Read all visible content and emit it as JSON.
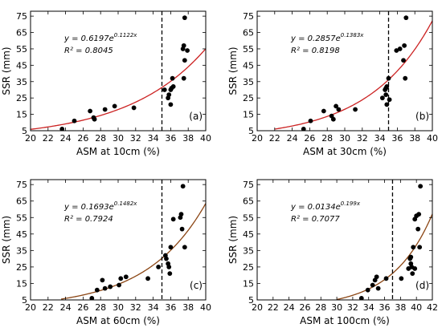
{
  "chart_data": [
    {
      "type": "scatter",
      "panel_label": "(a)",
      "xlabel": "ASM at 10cm (%)",
      "ylabel": "SSR (mm)",
      "xlim": [
        20,
        40
      ],
      "ylim": [
        5,
        78
      ],
      "xticks": [
        20,
        22,
        24,
        26,
        28,
        30,
        32,
        34,
        36,
        38,
        40
      ],
      "yticks": [
        5,
        15,
        25,
        35,
        45,
        55,
        65,
        75
      ],
      "equation": "y = 0.6197e^{0.1122x}",
      "equation_main": "y = 0.6197e",
      "equation_exp": "0.1122x",
      "r2_text": "R² = 0.8045",
      "fit": {
        "a": 0.6197,
        "b": 0.1122,
        "x_range": [
          20,
          40
        ],
        "color": "#cc2222"
      },
      "vline": 35,
      "points": [
        [
          23.6,
          6
        ],
        [
          25.0,
          11
        ],
        [
          26.8,
          17
        ],
        [
          27.2,
          13
        ],
        [
          27.3,
          12
        ],
        [
          28.5,
          18
        ],
        [
          29.6,
          20
        ],
        [
          31.8,
          19
        ],
        [
          35.3,
          30
        ],
        [
          35.7,
          25
        ],
        [
          35.8,
          27
        ],
        [
          36.0,
          30
        ],
        [
          36.0,
          21
        ],
        [
          36.1,
          31
        ],
        [
          36.2,
          37
        ],
        [
          36.3,
          32
        ],
        [
          37.4,
          55
        ],
        [
          37.5,
          57
        ],
        [
          37.5,
          37
        ],
        [
          37.6,
          48
        ],
        [
          37.6,
          74
        ],
        [
          37.9,
          54
        ]
      ]
    },
    {
      "type": "scatter",
      "panel_label": "(b)",
      "xlabel": "ASM at 30cm (%)",
      "ylabel": "SSR (mm)",
      "xlim": [
        20,
        40
      ],
      "ylim": [
        5,
        78
      ],
      "xticks": [
        20,
        22,
        24,
        26,
        28,
        30,
        32,
        34,
        36,
        38,
        40
      ],
      "yticks": [
        5,
        15,
        25,
        35,
        45,
        55,
        65,
        75
      ],
      "equation": "y = 0.2857e^{0.1383x}",
      "equation_main": "y = 0.2857e",
      "equation_exp": "0.1383x",
      "r2_text": "R² = 0.8198",
      "fit": {
        "a": 0.2857,
        "b": 0.1383,
        "x_range": [
          22,
          40
        ],
        "color": "#cc2222"
      },
      "vline": 35,
      "points": [
        [
          25.3,
          6
        ],
        [
          26.1,
          11
        ],
        [
          27.6,
          17
        ],
        [
          28.5,
          14
        ],
        [
          28.7,
          12
        ],
        [
          29.0,
          20
        ],
        [
          29.3,
          18
        ],
        [
          31.2,
          18
        ],
        [
          34.3,
          25
        ],
        [
          34.6,
          30
        ],
        [
          34.7,
          31
        ],
        [
          34.7,
          27
        ],
        [
          34.8,
          32
        ],
        [
          34.8,
          21
        ],
        [
          35.0,
          37
        ],
        [
          35.1,
          24
        ],
        [
          35.9,
          54
        ],
        [
          36.3,
          55
        ],
        [
          36.7,
          48
        ],
        [
          36.8,
          57
        ],
        [
          36.9,
          37
        ],
        [
          37.0,
          74
        ]
      ]
    },
    {
      "type": "scatter",
      "panel_label": "(c)",
      "xlabel": "ASM at 60cm (%)",
      "ylabel": "SSR (mm)",
      "xlim": [
        20,
        40
      ],
      "ylim": [
        5,
        78
      ],
      "xticks": [
        20,
        22,
        24,
        26,
        28,
        30,
        32,
        34,
        36,
        38,
        40
      ],
      "yticks": [
        5,
        15,
        25,
        35,
        45,
        55,
        65,
        75
      ],
      "equation": "y = 0.1693e^{0.1482x}",
      "equation_main": "y = 0.1693e",
      "equation_exp": "0.1482x",
      "r2_text": "R² = 0.7924",
      "fit": {
        "a": 0.1693,
        "b": 0.1482,
        "x_range": [
          23.5,
          40
        ],
        "color": "#8b4513"
      },
      "vline": 35,
      "points": [
        [
          27.0,
          6
        ],
        [
          27.6,
          11
        ],
        [
          28.2,
          17
        ],
        [
          28.5,
          12
        ],
        [
          29.1,
          13
        ],
        [
          30.1,
          14
        ],
        [
          30.3,
          18
        ],
        [
          30.9,
          19
        ],
        [
          33.4,
          18
        ],
        [
          34.6,
          25
        ],
        [
          35.4,
          32
        ],
        [
          35.5,
          30
        ],
        [
          35.7,
          27
        ],
        [
          35.8,
          25
        ],
        [
          35.9,
          21
        ],
        [
          36.0,
          37
        ],
        [
          36.3,
          54
        ],
        [
          37.1,
          55
        ],
        [
          37.2,
          57
        ],
        [
          37.3,
          48
        ],
        [
          37.4,
          74
        ],
        [
          37.6,
          37
        ]
      ]
    },
    {
      "type": "scatter",
      "panel_label": "(d)",
      "xlabel": "ASM at 100cm (%)",
      "ylabel": "SSR (mm)",
      "xlim": [
        20,
        42
      ],
      "ylim": [
        5,
        78
      ],
      "xticks": [
        20,
        22,
        24,
        26,
        28,
        30,
        32,
        34,
        36,
        38,
        40,
        42
      ],
      "yticks": [
        5,
        15,
        25,
        35,
        45,
        55,
        65,
        75
      ],
      "equation": "y = 0.0134e^{0.199x}",
      "equation_main": "y = 0.0134e",
      "equation_exp": "0.199x",
      "r2_text": "R² = 0.7077",
      "fit": {
        "a": 0.0134,
        "b": 0.199,
        "x_range": [
          30,
          42
        ],
        "color": "#8b4513"
      },
      "vline": 37,
      "points": [
        [
          33.1,
          6
        ],
        [
          33.9,
          11
        ],
        [
          34.5,
          14
        ],
        [
          34.8,
          17
        ],
        [
          35.0,
          19
        ],
        [
          35.2,
          12
        ],
        [
          36.2,
          18
        ],
        [
          38.1,
          18
        ],
        [
          39.0,
          24
        ],
        [
          39.2,
          30
        ],
        [
          39.3,
          31
        ],
        [
          39.3,
          27
        ],
        [
          39.4,
          25
        ],
        [
          39.5,
          21
        ],
        [
          39.6,
          37
        ],
        [
          39.8,
          24
        ],
        [
          39.8,
          54
        ],
        [
          40.0,
          56
        ],
        [
          40.2,
          48
        ],
        [
          40.3,
          57
        ],
        [
          40.4,
          37
        ],
        [
          40.5,
          74
        ]
      ]
    }
  ]
}
